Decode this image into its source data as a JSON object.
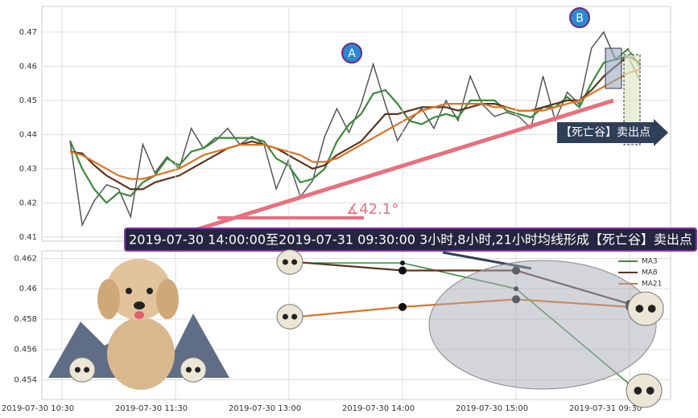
{
  "chart_data": [
    {
      "type": "line",
      "ylim": [
        0.4088,
        0.4775
      ],
      "yticks": [
        0.41,
        0.42,
        0.43,
        0.44,
        0.45,
        0.46,
        0.47
      ],
      "grid": true,
      "series": [
        {
          "color": "#555555",
          "values": [
            0.4382,
            0.4135,
            0.4206,
            0.4253,
            0.4241,
            0.4159,
            0.4371,
            0.4288,
            0.4335,
            0.43,
            0.4418,
            0.4359,
            0.4382,
            0.4418,
            0.4371,
            0.4394,
            0.4371,
            0.4241,
            0.4324,
            0.4218,
            0.4265,
            0.4394,
            0.4476,
            0.4406,
            0.4488,
            0.4606,
            0.4488,
            0.4382,
            0.4441,
            0.4476,
            0.4418,
            0.45,
            0.4441,
            0.4571,
            0.4488,
            0.4453,
            0.4465,
            0.4453,
            0.4418,
            0.4571,
            0.4441,
            0.4524,
            0.4488,
            0.4653,
            0.47,
            0.4618,
            0.4629,
            0.4559
          ]
        },
        {
          "color": "#3a8a3a",
          "values": [
            0.4382,
            0.43,
            0.424,
            0.42,
            0.423,
            0.422,
            0.426,
            0.428,
            0.433,
            0.431,
            0.435,
            0.436,
            0.439,
            0.439,
            0.439,
            0.439,
            0.438,
            0.433,
            0.431,
            0.426,
            0.427,
            0.43,
            0.438,
            0.443,
            0.446,
            0.452,
            0.453,
            0.449,
            0.444,
            0.443,
            0.445,
            0.446,
            0.445,
            0.45,
            0.45,
            0.45,
            0.447,
            0.446,
            0.445,
            0.448,
            0.448,
            0.451,
            0.448,
            0.455,
            0.461,
            0.462,
            0.465,
            0.46
          ]
        },
        {
          "color": "#5a3522",
          "values": [
            0.435,
            0.4345,
            0.431,
            0.428,
            0.426,
            0.424,
            0.424,
            0.426,
            0.427,
            0.428,
            0.43,
            0.432,
            0.434,
            0.436,
            0.437,
            0.438,
            0.437,
            0.436,
            0.434,
            0.432,
            0.43,
            0.431,
            0.434,
            0.436,
            0.438,
            0.442,
            0.446,
            0.446,
            0.447,
            0.448,
            0.448,
            0.448,
            0.447,
            0.448,
            0.449,
            0.449,
            0.448,
            0.447,
            0.447,
            0.448,
            0.449,
            0.45,
            0.45,
            0.453,
            0.457,
            0.46,
            0.463,
            0.461
          ]
        },
        {
          "color": "#e07020",
          "values": [
            0.435,
            0.434,
            0.432,
            0.43,
            0.428,
            0.427,
            0.427,
            0.428,
            0.429,
            0.43,
            0.432,
            0.434,
            0.435,
            0.436,
            0.437,
            0.437,
            0.437,
            0.436,
            0.435,
            0.434,
            0.432,
            0.432,
            0.433,
            0.435,
            0.437,
            0.439,
            0.441,
            0.443,
            0.445,
            0.447,
            0.448,
            0.449,
            0.449,
            0.449,
            0.449,
            0.448,
            0.448,
            0.447,
            0.447,
            0.447,
            0.448,
            0.449,
            0.45,
            0.452,
            0.454,
            0.456,
            0.458,
            0.459
          ]
        }
      ],
      "annotations": {
        "peak_a": "A",
        "peak_b": "B",
        "angle": "∡42.1°",
        "signal": "【死亡谷】卖出点",
        "banner": "2019-07-30 14:00:00至2019-07-31 09:30:00 3小时,8小时,21小时均线形成【死亡谷】卖出点"
      }
    },
    {
      "type": "line",
      "categories": [
        "2019-07-30 10:30",
        "2019-07-30 11:30",
        "2019-07-30 13:00",
        "2019-07-30 14:00",
        "2019-07-30 15:00",
        "2019-07-31 09:30"
      ],
      "ylim": [
        0.4527,
        0.4625
      ],
      "yticks": [
        0.454,
        0.456,
        0.458,
        0.46,
        0.462
      ],
      "grid": true,
      "legend": "upper right",
      "series": [
        {
          "name": "MA3",
          "color": "#3a8a3a",
          "values": [
            null,
            null,
            0.4617,
            0.4617,
            0.46,
            0.4537
          ]
        },
        {
          "name": "MA8",
          "color": "#5a3522",
          "values": [
            null,
            null,
            0.4618,
            0.4612,
            0.4612,
            0.459
          ]
        },
        {
          "name": "MA21",
          "color": "#e07020",
          "values": [
            null,
            null,
            0.4581,
            0.4588,
            0.4593,
            0.4588
          ]
        }
      ]
    }
  ]
}
